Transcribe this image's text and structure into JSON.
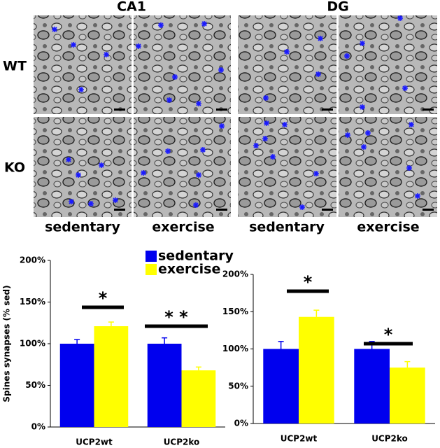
{
  "image_panels": {
    "columns": [
      "CA1",
      "DG"
    ],
    "rows": [
      "WT",
      "KO"
    ],
    "conditions": [
      "sedentary",
      "exercise",
      "sedentary",
      "exercise"
    ]
  },
  "chart_data": [
    {
      "type": "bar",
      "y_label": "Spines synapses (% sed)",
      "categories": [
        "UCP2wt",
        "UCP2ko"
      ],
      "series": [
        {
          "name": "sedentary",
          "color": "#0000ee",
          "values": [
            100,
            100
          ],
          "errors": [
            5,
            7
          ]
        },
        {
          "name": "exercise",
          "color": "#ffff00",
          "values": [
            121,
            68
          ],
          "errors": [
            5,
            4
          ]
        }
      ],
      "ylim": [
        0,
        200
      ],
      "yticks": [
        {
          "value": 0,
          "label": "0%"
        },
        {
          "value": 50,
          "label": "50%"
        },
        {
          "value": 100,
          "label": "100%"
        },
        {
          "value": 150,
          "label": "150%"
        },
        {
          "value": 200,
          "label": "200%"
        }
      ],
      "annotations": [
        "*",
        "* *"
      ],
      "legend": "top"
    },
    {
      "type": "bar",
      "categories": [
        "UCP2wt",
        "UCP2ko"
      ],
      "series": [
        {
          "name": "sedentary",
          "color": "#0000ee",
          "values": [
            100,
            100
          ],
          "errors": [
            10,
            10
          ]
        },
        {
          "name": "exercise",
          "color": "#ffff00",
          "values": [
            143,
            75
          ],
          "errors": [
            9,
            8
          ]
        }
      ],
      "ylim": [
        0,
        200
      ],
      "yticks": [
        {
          "value": 0,
          "label": "0%"
        },
        {
          "value": 50,
          "label": "50%"
        },
        {
          "value": 100,
          "label": "100%"
        },
        {
          "value": 150,
          "label": "150%"
        },
        {
          "value": 200,
          "label": "200%"
        }
      ],
      "annotations": [
        "*",
        "*"
      ]
    }
  ]
}
